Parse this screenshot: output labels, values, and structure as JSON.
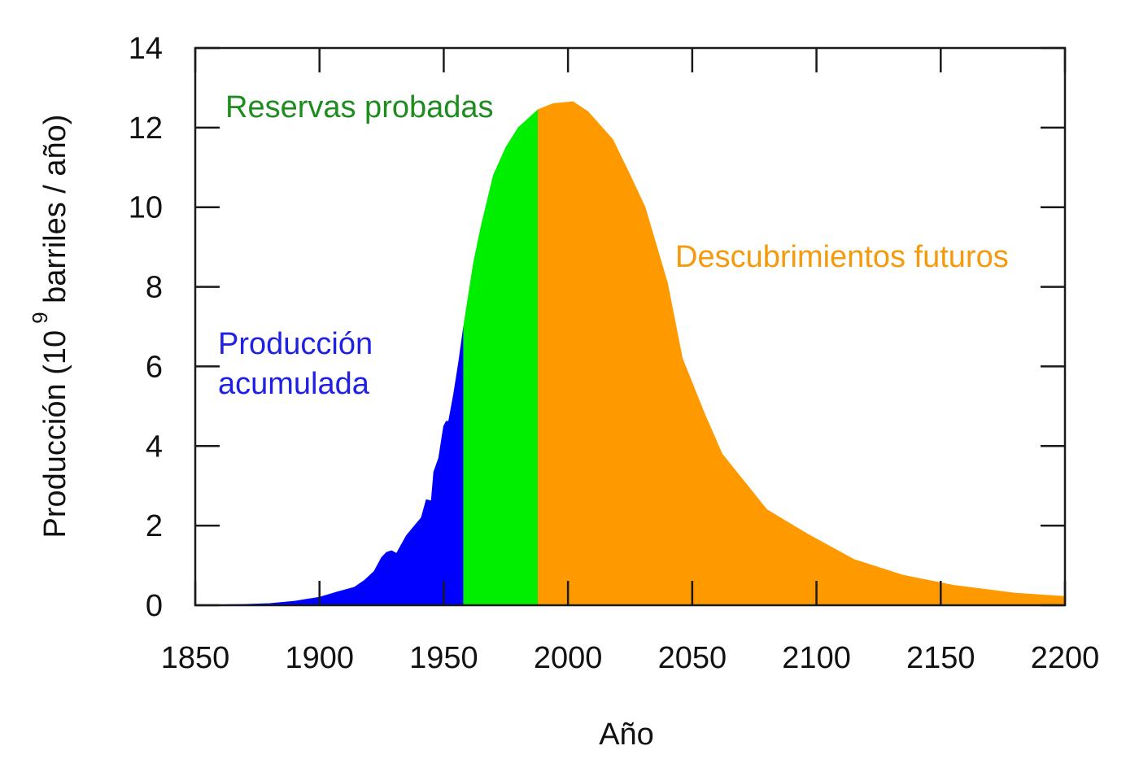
{
  "chart_data": {
    "type": "area",
    "title": "",
    "xlabel": "Año",
    "ylabel_main": "Producción (10",
    "ylabel_sup": "9",
    "ylabel_tail": " barriles / año)",
    "xlim": [
      1850,
      2200
    ],
    "ylim": [
      0,
      14
    ],
    "xticks": [
      1850,
      1900,
      1950,
      2000,
      2050,
      2100,
      2150,
      2200
    ],
    "yticks": [
      0,
      2,
      4,
      6,
      8,
      10,
      12,
      14
    ],
    "grid": false,
    "series": [
      {
        "name": "Producción acumulada",
        "color": "#0000ff",
        "points": [
          [
            1850,
            0
          ],
          [
            1860,
            0.01
          ],
          [
            1870,
            0.02
          ],
          [
            1880,
            0.04
          ],
          [
            1890,
            0.1
          ],
          [
            1900,
            0.2
          ],
          [
            1907,
            0.33
          ],
          [
            1914,
            0.45
          ],
          [
            1918,
            0.62
          ],
          [
            1922,
            0.85
          ],
          [
            1925,
            1.2
          ],
          [
            1927,
            1.33
          ],
          [
            1929,
            1.37
          ],
          [
            1931,
            1.3
          ],
          [
            1935,
            1.75
          ],
          [
            1939,
            2.05
          ],
          [
            1941,
            2.2
          ],
          [
            1943,
            2.65
          ],
          [
            1945,
            2.62
          ],
          [
            1946,
            3.35
          ],
          [
            1948,
            3.7
          ],
          [
            1950,
            4.5
          ],
          [
            1951,
            4.62
          ],
          [
            1952,
            4.62
          ],
          [
            1954,
            5.3
          ],
          [
            1956,
            6.1
          ],
          [
            1958,
            7
          ]
        ]
      },
      {
        "name": "Reservas probadas",
        "color": "#00ee00",
        "points": [
          [
            1958,
            7
          ],
          [
            1962,
            8.6
          ],
          [
            1965,
            9.5
          ],
          [
            1970,
            10.8
          ],
          [
            1975,
            11.5
          ],
          [
            1980,
            12
          ],
          [
            1988,
            12.45
          ]
        ]
      },
      {
        "name": "Descubrimientos futuros",
        "color": "#ff9900",
        "points": [
          [
            1988,
            12.45
          ],
          [
            1994,
            12.6
          ],
          [
            2002,
            12.65
          ],
          [
            2008,
            12.4
          ],
          [
            2018,
            11.7
          ],
          [
            2025,
            10.8
          ],
          [
            2031,
            10
          ],
          [
            2040,
            8.1
          ],
          [
            2046,
            6.2
          ],
          [
            2055,
            4.8
          ],
          [
            2062,
            3.8
          ],
          [
            2071,
            3.1
          ],
          [
            2080,
            2.4
          ],
          [
            2096,
            1.8
          ],
          [
            2115,
            1.15
          ],
          [
            2135,
            0.75
          ],
          [
            2155,
            0.5
          ],
          [
            2180,
            0.3
          ],
          [
            2200,
            0.22
          ]
        ]
      }
    ],
    "annotations": [
      {
        "text": "Reservas probadas",
        "color": "#1e8c1e"
      },
      {
        "text": "Descubrimientos futuros",
        "color": "#f59a0c"
      },
      {
        "lines": [
          "Producción",
          "acumulada"
        ],
        "color": "#1f1fe6"
      }
    ]
  }
}
